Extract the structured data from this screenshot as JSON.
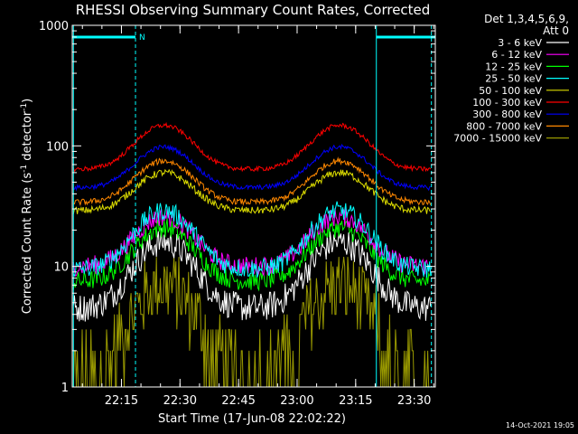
{
  "chart_data": {
    "type": "line",
    "title": "RHESSI Observing Summary Count Rates, Corrected",
    "xlabel": "Start Time (17-Jun-08 22:02:22)",
    "ylabel_main": "Corrected Count Rate (s",
    "ylabel_sup1": "-1",
    "ylabel_mid": " detector",
    "ylabel_sup2": "-1",
    "ylabel_end": ")",
    "y_scale": "log",
    "ylim": [
      1,
      1000
    ],
    "xlim_minutes": [
      0,
      93
    ],
    "x_ticks": [
      {
        "label": "22:15",
        "minute": 12.6
      },
      {
        "label": "22:30",
        "minute": 27.6
      },
      {
        "label": "22:45",
        "minute": 42.6
      },
      {
        "label": "23:00",
        "minute": 57.6
      },
      {
        "label": "23:15",
        "minute": 72.6
      },
      {
        "label": "23:30",
        "minute": 87.6
      }
    ],
    "y_ticks": [
      {
        "label": "1",
        "value": 1
      },
      {
        "label": "10",
        "value": 10
      },
      {
        "label": "100",
        "value": 100
      },
      {
        "label": "1000",
        "value": 1000
      }
    ],
    "legend_header_line1": "Det 1,3,4,5,6,9,",
    "legend_header_line2": "Att 0",
    "night_marker": "N",
    "night_bars": [
      {
        "start": 0,
        "end": 16.2
      },
      {
        "start": 77.9,
        "end": 93
      }
    ],
    "dashed_markers": [
      16.2,
      92.0
    ],
    "solid_markers": [
      0.3,
      77.9
    ],
    "peaks": [
      {
        "center": 23.5,
        "width": 9
      },
      {
        "center": 68.5,
        "width": 9
      }
    ],
    "series": [
      {
        "name": "3 - 6 keV",
        "color": "#ffffff",
        "base": 4.5,
        "peak": 16,
        "noise": 0.12
      },
      {
        "name": "6 - 12 keV",
        "color": "#ff00ff",
        "base": 10,
        "peak": 26,
        "noise": 0.08
      },
      {
        "name": "12 - 25 keV",
        "color": "#00ff00",
        "base": 7.5,
        "peak": 21,
        "noise": 0.08
      },
      {
        "name": "25 - 50 keV",
        "color": "#00ffff",
        "base": 9.5,
        "peak": 29,
        "noise": 0.08
      },
      {
        "name": "50 - 100 keV",
        "color": "#dddd00",
        "base": 29,
        "peak": 60,
        "noise": 0.03
      },
      {
        "name": "100 - 300 keV",
        "color": "#ff0000",
        "base": 64,
        "peak": 148,
        "noise": 0.02
      },
      {
        "name": "300 - 800 keV",
        "color": "#0000ff",
        "base": 45,
        "peak": 98,
        "noise": 0.02
      },
      {
        "name": "800 - 7000 keV",
        "color": "#ff8800",
        "base": 34,
        "peak": 75,
        "noise": 0.025
      },
      {
        "name": "7000 - 15000 keV",
        "color": "#999900",
        "base": 1.6,
        "peak": 7,
        "noise": 0.3
      }
    ]
  },
  "footer": {
    "timestamp": "14-Oct-2021 19:05"
  }
}
